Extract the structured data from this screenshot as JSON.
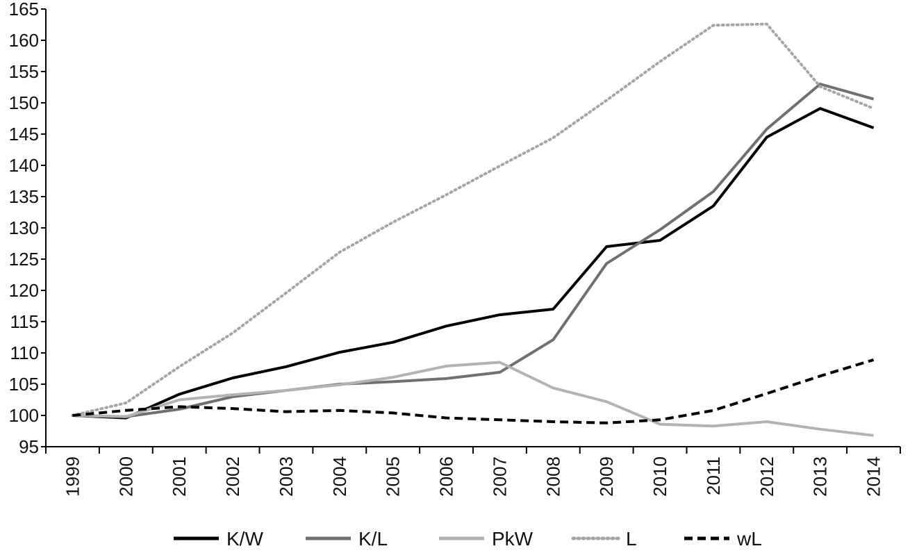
{
  "chart_data": {
    "type": "line",
    "title": "",
    "xlabel": "",
    "ylabel": "",
    "x": [
      "1999",
      "2000",
      "2001",
      "2002",
      "2003",
      "2004",
      "2005",
      "2006",
      "2007",
      "2008",
      "2009",
      "2010",
      "2011",
      "2012",
      "2013",
      "2014"
    ],
    "ylim": [
      95,
      165
    ],
    "yticks": [
      95,
      100,
      105,
      110,
      115,
      120,
      125,
      130,
      135,
      140,
      145,
      150,
      155,
      160,
      165
    ],
    "grid": false,
    "legend_position": "bottom",
    "series": [
      {
        "name": "K/W",
        "color": "#000000",
        "dash": "solid",
        "values": [
          100,
          99.6,
          103.4,
          106.0,
          107.8,
          110.1,
          111.7,
          114.3,
          116.1,
          117.0,
          127.0,
          128.0,
          133.5,
          144.5,
          149.1,
          146.0
        ]
      },
      {
        "name": "K/L",
        "color": "#707070",
        "dash": "solid",
        "values": [
          100,
          99.8,
          101.0,
          103.0,
          104.0,
          105.0,
          105.4,
          105.9,
          106.9,
          112.1,
          124.3,
          129.7,
          135.8,
          145.8,
          153.0,
          150.6
        ]
      },
      {
        "name": "PkW",
        "color": "#b3b3b3",
        "dash": "solid",
        "values": [
          100,
          99.8,
          102.5,
          103.3,
          104.0,
          104.9,
          106.1,
          107.9,
          108.5,
          104.4,
          102.2,
          98.6,
          98.3,
          99.0,
          97.8,
          96.8
        ]
      },
      {
        "name": "L",
        "color": "#a6a6a6",
        "dash": "dotted",
        "values": [
          100,
          102.0,
          107.8,
          113.2,
          119.6,
          126.1,
          130.9,
          135.3,
          139.9,
          144.4,
          150.4,
          156.6,
          162.4,
          162.6,
          152.6,
          149.1
        ]
      },
      {
        "name": "wL",
        "color": "#000000",
        "dash": "dashed",
        "values": [
          100,
          100.8,
          101.4,
          101.1,
          100.6,
          100.8,
          100.4,
          99.6,
          99.3,
          99.0,
          98.8,
          99.3,
          100.8,
          103.5,
          106.3,
          108.9
        ]
      }
    ]
  }
}
